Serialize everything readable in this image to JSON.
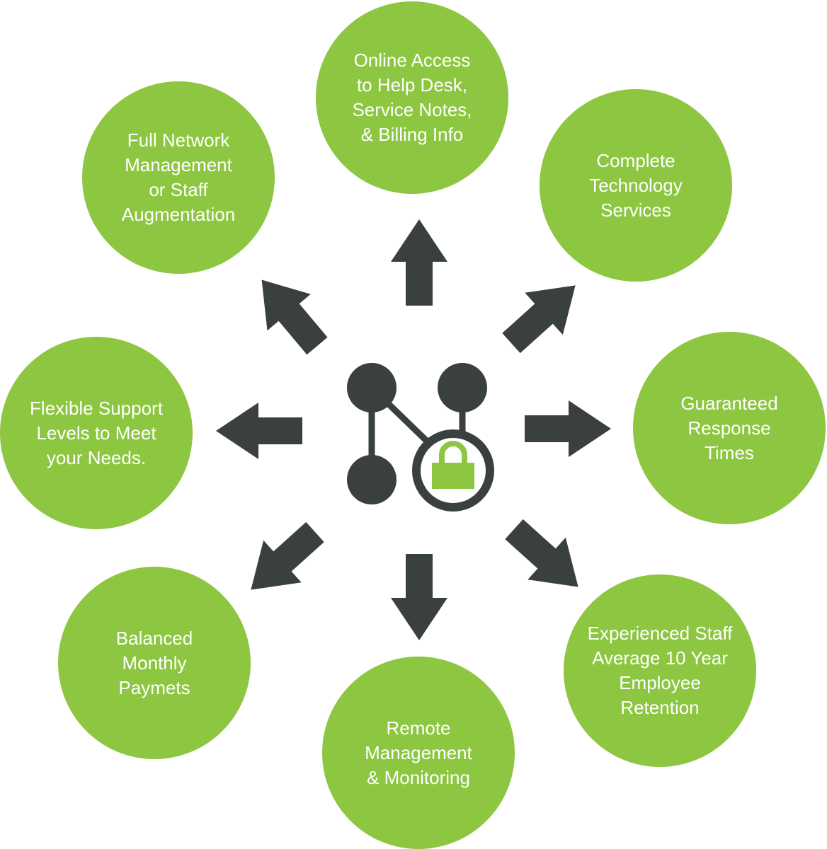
{
  "colors": {
    "circle_fill": "#8dc641",
    "arrow_fill": "#3a3f40",
    "text": "#ffffff"
  },
  "hub": {
    "icon": "network-lock-icon"
  },
  "items": [
    {
      "id": "online-access",
      "text": "Online Access\nto Help Desk,\nService Notes,\n& Billing Info"
    },
    {
      "id": "complete-technology",
      "text": "Complete\nTechnology\nServices"
    },
    {
      "id": "guaranteed-response",
      "text": "Guaranteed\nResponse\nTimes"
    },
    {
      "id": "experienced-staff",
      "text": "Experienced Staff\nAverage 10 Year\nEmployee\nRetention"
    },
    {
      "id": "remote-management",
      "text": "Remote\nManagement\n& Monitoring"
    },
    {
      "id": "balanced-payments",
      "text": "Balanced\nMonthly\nPaymets"
    },
    {
      "id": "flexible-support",
      "text": "Flexible Support\nLevels to Meet\nyour Needs."
    },
    {
      "id": "full-network",
      "text": "Full Network\nManagement\nor Staff\nAugmentation"
    }
  ]
}
